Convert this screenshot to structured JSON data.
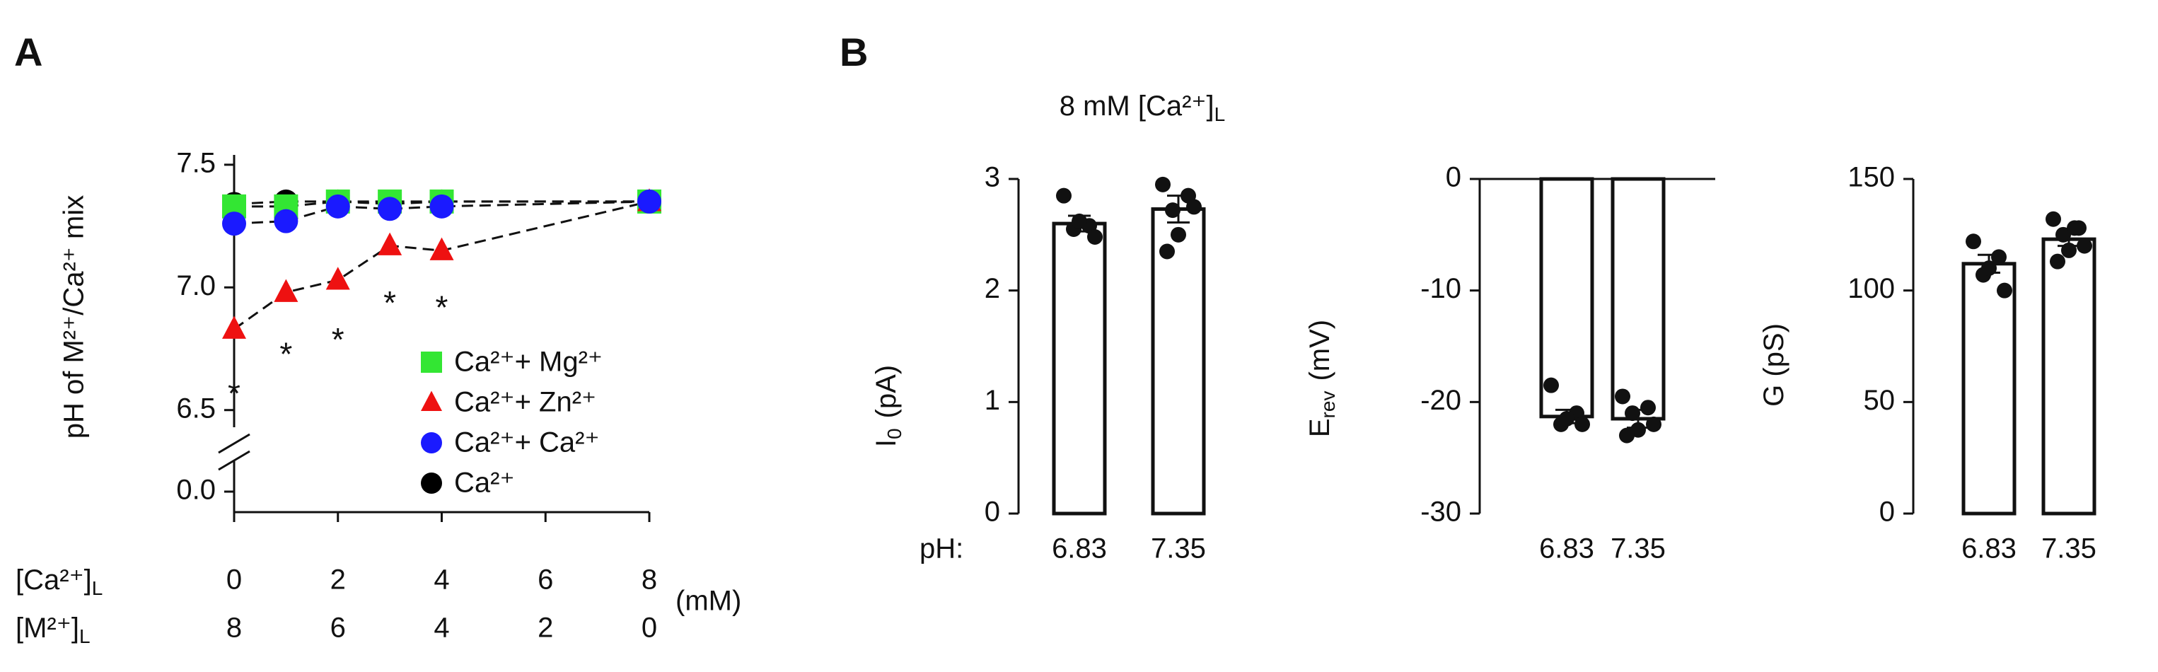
{
  "panel_labels": [
    "A",
    "B"
  ],
  "panel_b_title": {
    "text": "8 mM [Ca²⁺]",
    "sub": "L"
  },
  "chart_data": [
    {
      "type": "line",
      "ylabel": "pH of M²⁺/Ca²⁺ mix",
      "x": [
        0,
        1,
        2,
        3,
        4,
        8
      ],
      "xlim": [
        0,
        8
      ],
      "xticks": [
        0,
        2,
        4,
        6,
        8
      ],
      "m_ticks": [
        8,
        6,
        4,
        2,
        0
      ],
      "x_row_labels": [
        {
          "text": "[Ca²⁺]",
          "sub": "L"
        },
        {
          "text": "[M²⁺]",
          "sub": "L"
        }
      ],
      "x_unit": "(mM)",
      "ylim": [
        6.43,
        7.54
      ],
      "yticks": [
        {
          "value": 6.5,
          "label": "6.5"
        },
        {
          "value": 7,
          "label": "7.0"
        },
        {
          "value": 7.5,
          "label": "7.5"
        }
      ],
      "ybreak_tick": {
        "value": 0,
        "label": "0.0"
      },
      "legend": "lower right",
      "series": [
        {
          "name": "Ca²⁺+ Mg²⁺",
          "color": "#33e633",
          "marker": "square",
          "values": [
            7.33,
            7.33,
            7.35,
            7.35,
            7.35,
            7.35
          ]
        },
        {
          "name": "Ca²⁺+ Zn²⁺",
          "color": "#ee1111",
          "marker": "triangle",
          "values": [
            6.83,
            6.98,
            7.03,
            7.17,
            7.15,
            7.35
          ]
        },
        {
          "name": "Ca²⁺+ Ca²⁺",
          "color": "#1a1aff",
          "marker": "circle",
          "values": [
            7.26,
            7.27,
            7.33,
            7.32,
            7.33,
            7.35
          ]
        },
        {
          "name": "Ca²⁺",
          "color": "#000000",
          "marker": "circle",
          "values": [
            7.34,
            7.35,
            7.35,
            7.34,
            7.35,
            7.35
          ]
        }
      ],
      "annotations": [
        {
          "x": 0,
          "y": 6.58,
          "text": "*"
        },
        {
          "x": 1,
          "y": 6.74,
          "text": "*"
        },
        {
          "x": 2,
          "y": 6.8,
          "text": "*"
        },
        {
          "x": 3,
          "y": 6.95,
          "text": "*"
        },
        {
          "x": 4,
          "y": 6.93,
          "text": "*"
        }
      ]
    },
    {
      "type": "bar",
      "ylabel": {
        "text": "I",
        "sub": "0",
        "unit": "(pA)"
      },
      "row_label": "pH:",
      "categories": [
        "6.83",
        "7.35"
      ],
      "values": [
        2.6,
        2.73
      ],
      "errors": [
        0.07,
        0.12
      ],
      "points": [
        [
          2.85,
          2.58,
          2.55,
          2.48,
          2.62
        ],
        [
          2.95,
          2.85,
          2.72,
          2.75,
          2.5,
          2.35
        ]
      ],
      "ylim": [
        0,
        3
      ],
      "yticks": [
        0,
        1,
        2,
        3
      ]
    },
    {
      "type": "bar",
      "ylabel": {
        "text": "E",
        "sub": "rev",
        "unit": "(mV)"
      },
      "categories": [
        "6.83",
        "7.35"
      ],
      "values": [
        -21.3,
        -21.5
      ],
      "errors": [
        0.6,
        0.8
      ],
      "points": [
        [
          -18.5,
          -21,
          -22,
          -22,
          -21.5
        ],
        [
          -19.5,
          -20.5,
          -21,
          -22,
          -22.5,
          -23
        ]
      ],
      "ylim": [
        -30,
        0
      ],
      "yticks": [
        -30,
        -20,
        -10,
        0
      ]
    },
    {
      "type": "bar",
      "ylabel": {
        "text": "G (pS)"
      },
      "categories": [
        "6.83",
        "7.35"
      ],
      "values": [
        112,
        123
      ],
      "errors": [
        4,
        3
      ],
      "points": [
        [
          122,
          115,
          107,
          100,
          110
        ],
        [
          132,
          128,
          125,
          120,
          118,
          113,
          128
        ]
      ],
      "ylim": [
        0,
        150
      ],
      "yticks": [
        0,
        50,
        100,
        150
      ]
    }
  ]
}
